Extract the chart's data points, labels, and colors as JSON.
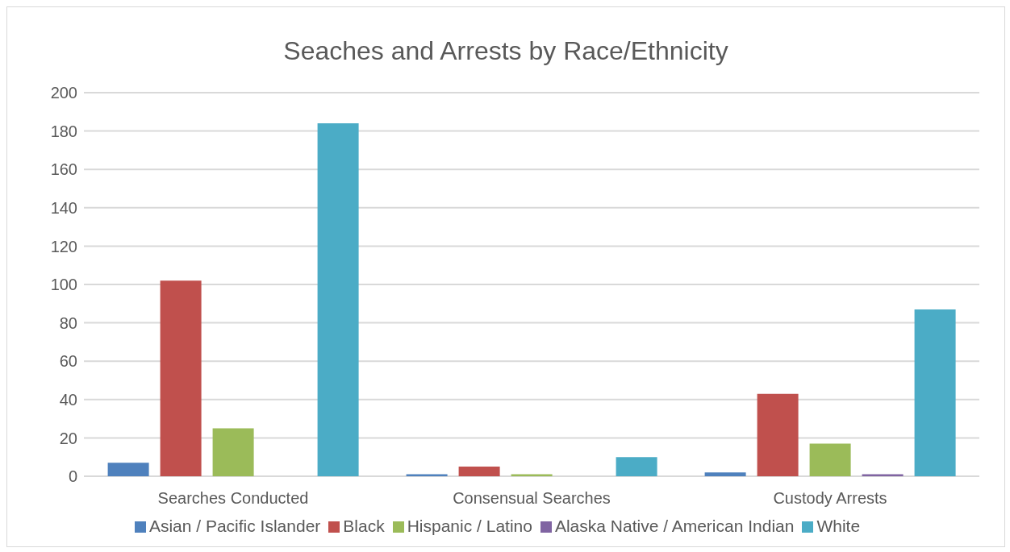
{
  "chart_data": {
    "type": "bar",
    "title": "Seaches and Arrests by Race/Ethnicity",
    "categories": [
      "Searches Conducted",
      "Consensual Searches",
      "Custody Arrests"
    ],
    "series": [
      {
        "name": "Asian / Pacific Islander",
        "color": "#4f81bd",
        "values": [
          7,
          1,
          2
        ]
      },
      {
        "name": "Black",
        "color": "#c0504d",
        "values": [
          102,
          5,
          43
        ]
      },
      {
        "name": "Hispanic / Latino",
        "color": "#9bbb59",
        "values": [
          25,
          1,
          17
        ]
      },
      {
        "name": "Alaska Native / American Indian",
        "color": "#8064a2",
        "values": [
          0,
          0,
          1
        ]
      },
      {
        "name": "White",
        "color": "#4bacc6",
        "values": [
          184,
          10,
          87
        ]
      }
    ],
    "ylim": [
      0,
      200
    ],
    "yticks": [
      0,
      20,
      40,
      60,
      80,
      100,
      120,
      140,
      160,
      180,
      200
    ],
    "grid": "y",
    "legend": "bottom"
  }
}
